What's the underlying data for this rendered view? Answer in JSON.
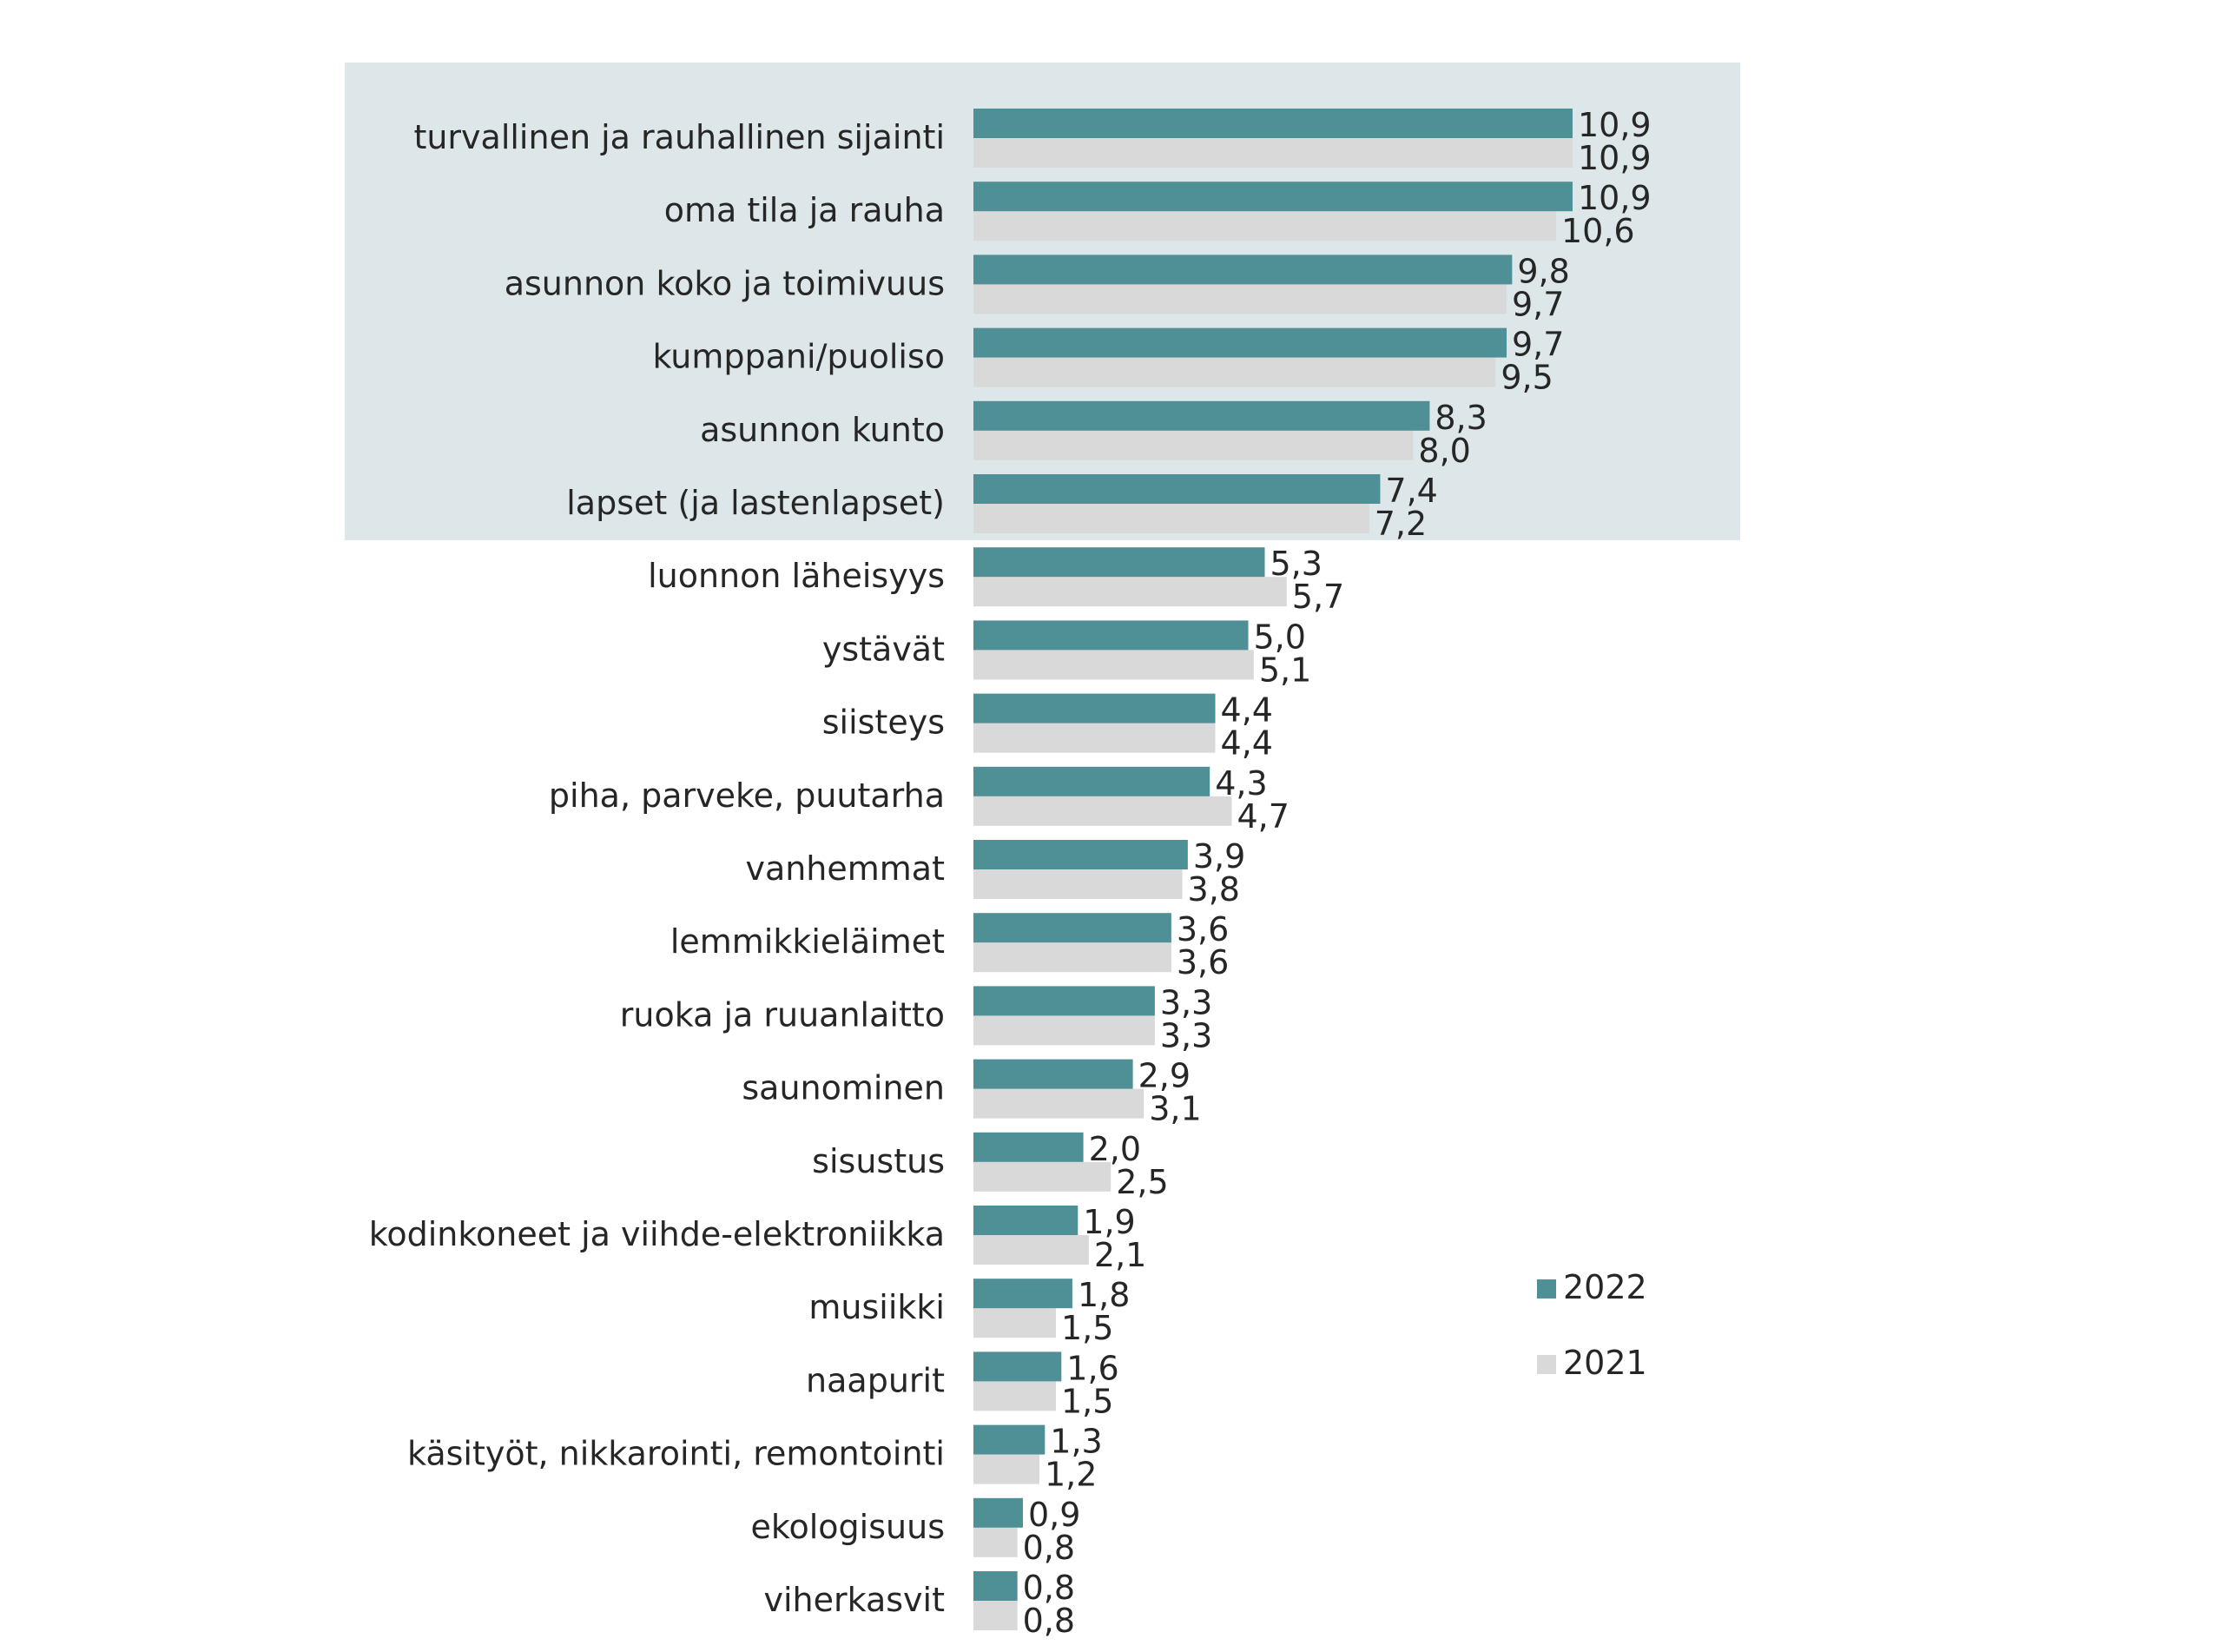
{
  "chart_data": {
    "type": "bar",
    "orientation": "horizontal",
    "categories": [
      "turvallinen ja rauhallinen sijainti",
      "oma tila ja rauha",
      "asunnon koko ja toimivuus",
      "kumppani/puoliso",
      "asunnon kunto",
      "lapset (ja lastenlapset)",
      "luonnon läheisyys",
      "ystävät",
      "siisteys",
      "piha, parveke, puutarha",
      "vanhemmat",
      "lemmikkieläimet",
      "ruoka ja ruuanlaitto",
      "saunominen",
      "sisustus",
      "kodinkoneet ja viihde-elektroniikka",
      "musiikki",
      "naapurit",
      "käsityöt, nikkarointi, remontointi",
      "ekologisuus",
      "viherkasvit"
    ],
    "series": [
      {
        "name": "2022",
        "color": "#4f8f96",
        "values": [
          10.9,
          10.9,
          9.8,
          9.7,
          8.3,
          7.4,
          5.3,
          5.0,
          4.4,
          4.3,
          3.9,
          3.6,
          3.3,
          2.9,
          2.0,
          1.9,
          1.8,
          1.6,
          1.3,
          0.9,
          0.8
        ],
        "labels": [
          "10,9",
          "10,9",
          "9,8",
          "9,7",
          "8,3",
          "7,4",
          "5,3",
          "5,0",
          "4,4",
          "4,3",
          "3,9",
          "3,6",
          "3,3",
          "2,9",
          "2,0",
          "1,9",
          "1,8",
          "1,6",
          "1,3",
          "0,9",
          "0,8"
        ]
      },
      {
        "name": "2021",
        "color": "#d9d9d9",
        "values": [
          10.9,
          10.6,
          9.7,
          9.5,
          8.0,
          7.2,
          5.7,
          5.1,
          4.4,
          4.7,
          3.8,
          3.6,
          3.3,
          3.1,
          2.5,
          2.1,
          1.5,
          1.5,
          1.2,
          0.8,
          0.8
        ],
        "labels": [
          "10,9",
          "10,6",
          "9,7",
          "9,5",
          "8,0",
          "7,2",
          "5,7",
          "5,1",
          "4,4",
          "4,7",
          "3,8",
          "3,6",
          "3,3",
          "3,1",
          "2,5",
          "2,1",
          "1,5",
          "1,5",
          "1,2",
          "0,8",
          "0,8"
        ]
      }
    ],
    "xlim": [
      0,
      11
    ],
    "grid": false,
    "legend": "right",
    "highlight": {
      "color": "#dde6e8",
      "categories_from": 0,
      "categories_to": 5
    }
  }
}
